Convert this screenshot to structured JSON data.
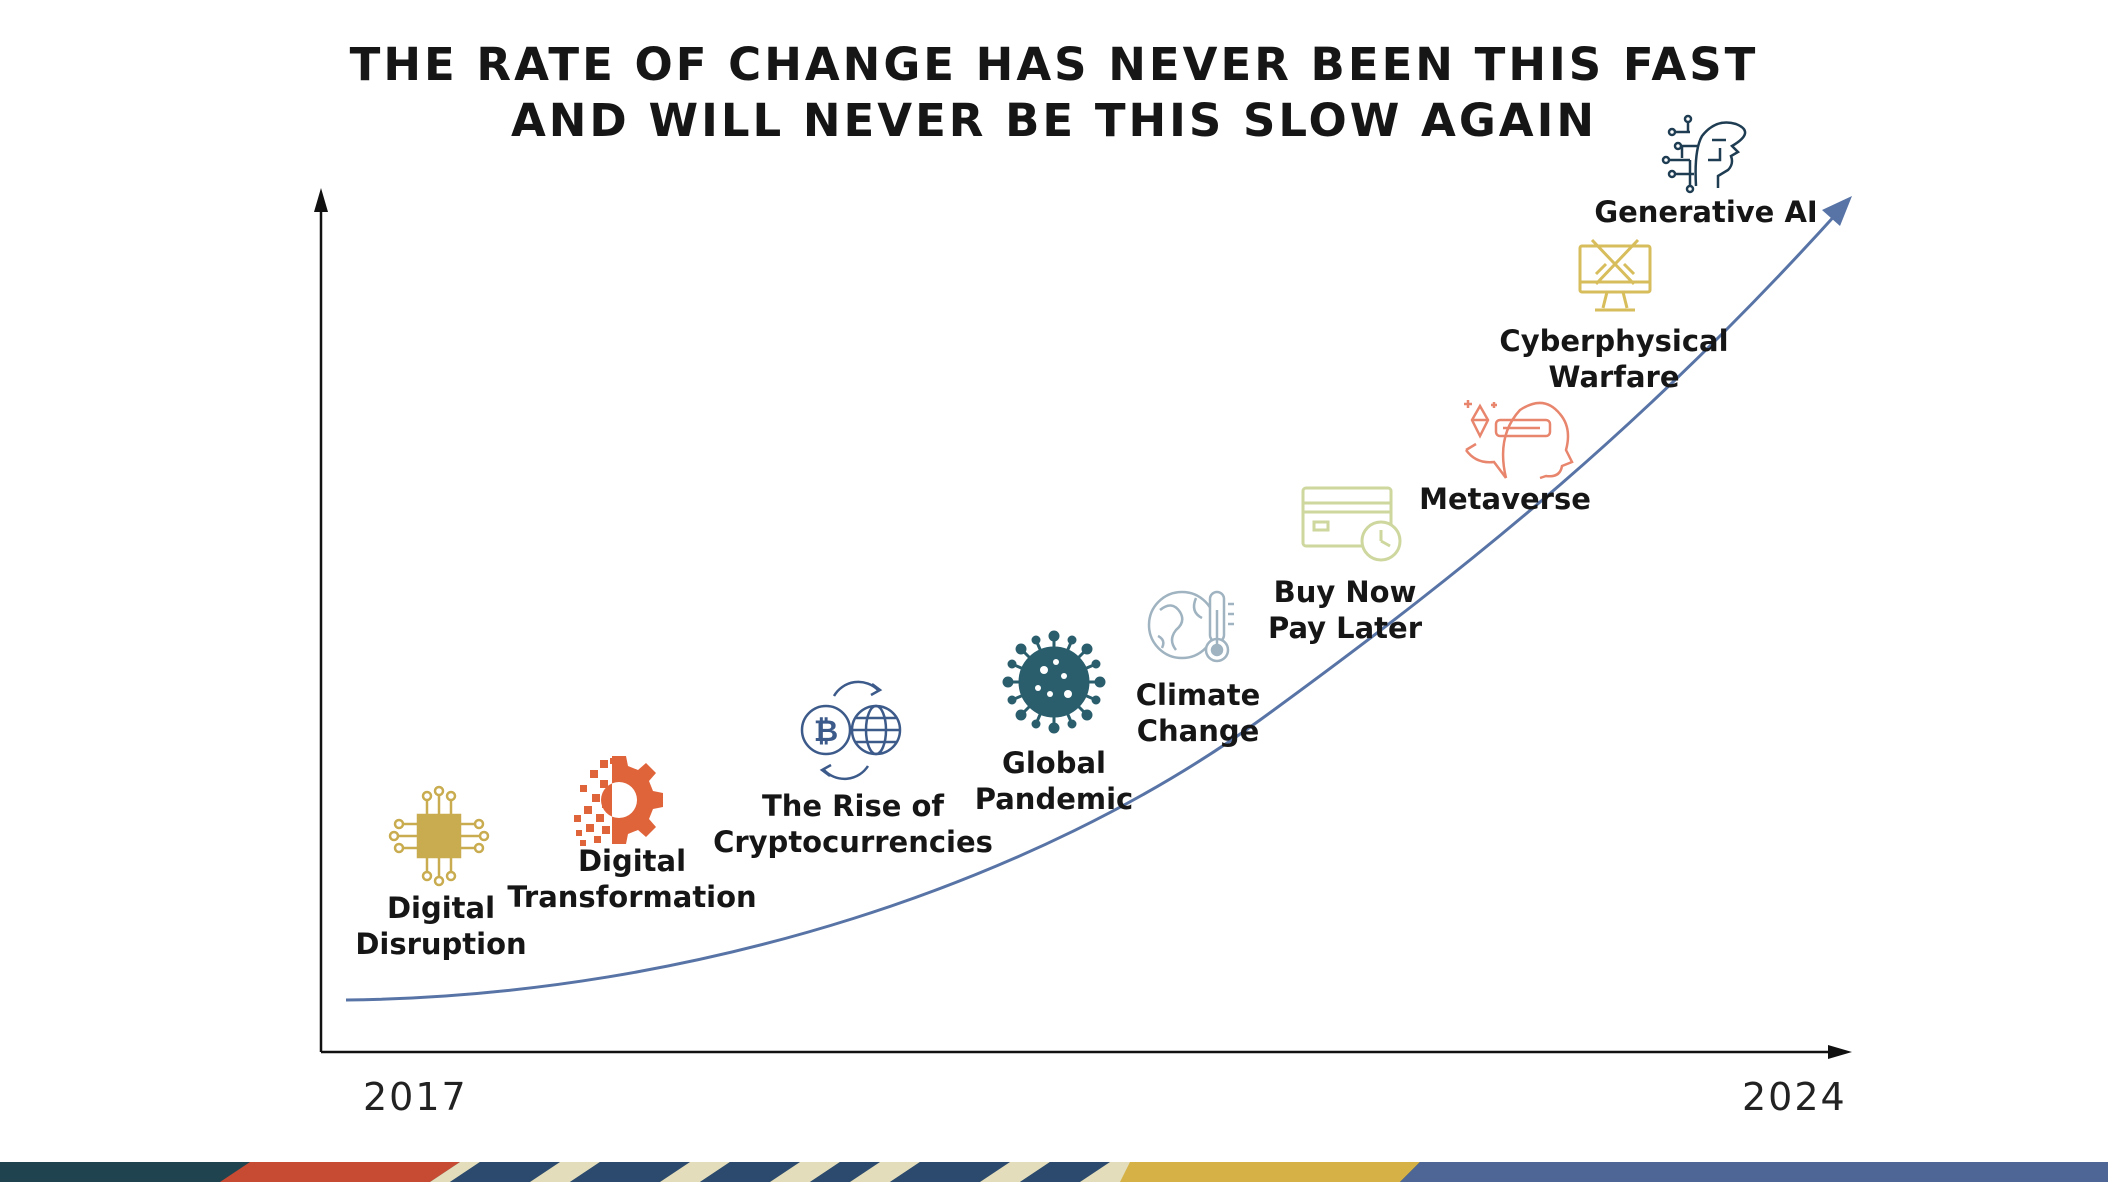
{
  "title": {
    "line1": "THE RATE OF CHANGE HAS NEVER BEEN THIS FAST",
    "line2": "AND WILL NEVER BE THIS SLOW AGAIN"
  },
  "axis": {
    "start_label": "2017",
    "end_label": "2024"
  },
  "milestones": [
    {
      "id": "digital-disruption",
      "lines": [
        "Digital",
        "Disruption"
      ],
      "icon": "chip-icon",
      "color": "#c9ac4f"
    },
    {
      "id": "digital-transformation",
      "lines": [
        "Digital",
        "Transformation"
      ],
      "icon": "pixel-gear-icon",
      "color": "#e0643a"
    },
    {
      "id": "cryptocurrencies",
      "lines": [
        "The Rise of",
        "Cryptocurrencies"
      ],
      "icon": "bitcoin-globe-exchange-icon",
      "color": "#3c5a8a"
    },
    {
      "id": "global-pandemic",
      "lines": [
        "Global",
        "Pandemic"
      ],
      "icon": "virus-icon",
      "color": "#2a5e6c"
    },
    {
      "id": "climate-change",
      "lines": [
        "Climate",
        "Change"
      ],
      "icon": "globe-thermometer-icon",
      "color": "#9fb3c0"
    },
    {
      "id": "buy-now-pay-later",
      "lines": [
        "Buy Now",
        "Pay Later"
      ],
      "icon": "card-clock-icon",
      "color": "#cdd79e"
    },
    {
      "id": "metaverse",
      "lines": [
        "Metaverse"
      ],
      "icon": "vr-headset-icon",
      "color": "#e8856d"
    },
    {
      "id": "cyberphysical-warfare",
      "lines": [
        "Cyberphysical",
        "Warfare"
      ],
      "icon": "monitor-swords-icon",
      "color": "#d7bd5c"
    },
    {
      "id": "generative-ai",
      "lines": [
        "Generative AI"
      ],
      "icon": "ai-head-icon",
      "color": "#1e3c52"
    }
  ],
  "colors": {
    "curve": "#5874a6",
    "axis": "#111111",
    "stripe_dark_teal": "#1f4450",
    "stripe_red": "#c74a33",
    "stripe_cream": "#e3ddbb",
    "stripe_navy": "#2c4a6e",
    "stripe_gold": "#d6b246",
    "stripe_blue": "#4d6696"
  }
}
